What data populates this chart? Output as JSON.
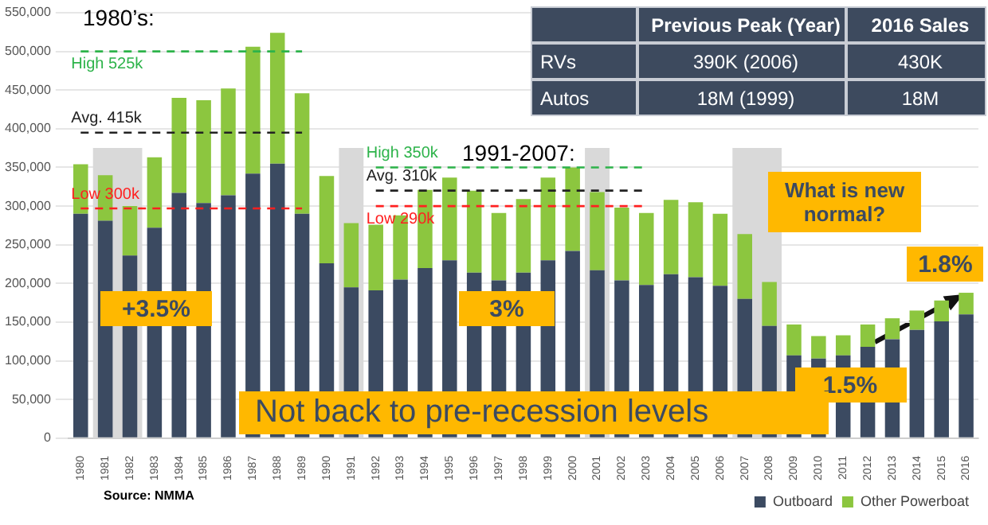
{
  "chart_data": {
    "type": "bar",
    "stacked": true,
    "grid": "y",
    "legend": "bottom",
    "categories": [
      "1980",
      "1981",
      "1982",
      "1983",
      "1984",
      "1985",
      "1986",
      "1987",
      "1988",
      "1989",
      "1990",
      "1991",
      "1992",
      "1993",
      "1994",
      "1995",
      "1996",
      "1997",
      "1998",
      "1999",
      "2000",
      "2001",
      "2002",
      "2003",
      "2004",
      "2005",
      "2006",
      "2007",
      "2008",
      "2009",
      "2010",
      "2011",
      "2012",
      "2013",
      "2014",
      "2015",
      "2016"
    ],
    "ylim": [
      0,
      550000
    ],
    "yticks": [
      {
        "value": 0,
        "label": "0"
      },
      {
        "value": 50000,
        "label": "50,000"
      },
      {
        "value": 100000,
        "label": "100,000"
      },
      {
        "value": 150000,
        "label": "150,000"
      },
      {
        "value": 200000,
        "label": "200,000"
      },
      {
        "value": 250000,
        "label": "250,000"
      },
      {
        "value": 300000,
        "label": "300,000"
      },
      {
        "value": 350000,
        "label": "350,000"
      },
      {
        "value": 400000,
        "label": "400,000"
      },
      {
        "value": 450000,
        "label": "450,000"
      },
      {
        "value": 500000,
        "label": "500,000"
      },
      {
        "value": 550000,
        "label": "550,000"
      }
    ],
    "series": [
      {
        "name": "Outboard",
        "color": "#3b4a61",
        "values": [
          290000,
          281000,
          236000,
          272000,
          317000,
          304000,
          314000,
          342000,
          355000,
          290000,
          226000,
          195000,
          191000,
          205000,
          220000,
          230000,
          214000,
          204000,
          214000,
          230000,
          242000,
          217000,
          204000,
          198000,
          212000,
          208000,
          197000,
          180000,
          145000,
          107000,
          103000,
          107000,
          118000,
          128000,
          140000,
          151000,
          160000
        ]
      },
      {
        "name": "Other Powerboat",
        "color": "#8cc63f",
        "values": [
          64000,
          59000,
          64000,
          91000,
          123000,
          133000,
          138000,
          164000,
          169000,
          156000,
          113000,
          83000,
          85000,
          83000,
          101000,
          107000,
          106000,
          87000,
          95000,
          107000,
          108000,
          101000,
          94000,
          93000,
          96000,
          97000,
          93000,
          84000,
          57000,
          40000,
          29000,
          26000,
          29000,
          27000,
          25000,
          27000,
          28000
        ]
      },
      {
        "name": "High 525k",
        "type": "line",
        "line_style": "dashed",
        "marker": "none",
        "color": "#2db34a",
        "values": [
          500000,
          500000,
          500000,
          500000,
          500000,
          500000,
          500000,
          500000,
          500000,
          500000,
          null,
          null,
          null,
          null,
          null,
          null,
          null,
          null,
          null,
          null,
          null,
          null,
          null,
          null,
          null,
          null,
          null,
          null,
          null,
          null,
          null,
          null,
          null,
          null,
          null,
          null,
          null
        ]
      },
      {
        "name": "Avg. 415k",
        "type": "line",
        "line_style": "dashed",
        "marker": "none",
        "color": "#222222",
        "values": [
          395000,
          395000,
          395000,
          395000,
          395000,
          395000,
          395000,
          395000,
          395000,
          395000,
          null,
          null,
          null,
          null,
          null,
          null,
          null,
          null,
          null,
          null,
          null,
          null,
          null,
          null,
          null,
          null,
          null,
          null,
          null,
          null,
          null,
          null,
          null,
          null,
          null,
          null,
          null
        ]
      },
      {
        "name": "Low 300k",
        "type": "line",
        "line_style": "dashed",
        "marker": "none",
        "color": "#ff2020",
        "values": [
          297000,
          297000,
          297000,
          297000,
          297000,
          297000,
          297000,
          297000,
          297000,
          297000,
          null,
          null,
          null,
          null,
          null,
          null,
          null,
          null,
          null,
          null,
          null,
          null,
          null,
          null,
          null,
          null,
          null,
          null,
          null,
          null,
          null,
          null,
          null,
          null,
          null,
          null,
          null
        ]
      },
      {
        "name": "High 350k",
        "type": "line",
        "line_style": "dashed",
        "marker": "none",
        "color": "#2db34a",
        "values": [
          null,
          null,
          null,
          null,
          null,
          null,
          null,
          null,
          null,
          null,
          null,
          null,
          350000,
          350000,
          350000,
          350000,
          350000,
          350000,
          350000,
          350000,
          350000,
          350000,
          350000,
          350000,
          null,
          null,
          null,
          null,
          null,
          null,
          null,
          null,
          null,
          null,
          null,
          null,
          null
        ]
      },
      {
        "name": "Avg. 310k",
        "type": "line",
        "line_style": "dashed",
        "marker": "none",
        "color": "#222222",
        "values": [
          null,
          null,
          null,
          null,
          null,
          null,
          null,
          null,
          null,
          null,
          null,
          null,
          320000,
          320000,
          320000,
          320000,
          320000,
          320000,
          320000,
          320000,
          320000,
          320000,
          320000,
          320000,
          null,
          null,
          null,
          null,
          null,
          null,
          null,
          null,
          null,
          null,
          null,
          null,
          null
        ]
      },
      {
        "name": "Low 290k",
        "type": "line",
        "line_style": "dashed",
        "marker": "none",
        "color": "#ff2020",
        "values": [
          null,
          null,
          null,
          null,
          null,
          null,
          null,
          null,
          null,
          null,
          null,
          null,
          300000,
          300000,
          300000,
          300000,
          300000,
          300000,
          300000,
          300000,
          300000,
          300000,
          300000,
          300000,
          null,
          null,
          null,
          null,
          null,
          null,
          null,
          null,
          null,
          null,
          null,
          null,
          null
        ]
      }
    ],
    "bands": [
      {
        "axis": "x",
        "from": "1981",
        "to": "1982",
        "color": "#d9d9d9"
      },
      {
        "axis": "x",
        "from": "1991",
        "to": "1991",
        "color": "#d9d9d9"
      },
      {
        "axis": "x",
        "from": "2001",
        "to": "2001",
        "color": "#d9d9d9"
      },
      {
        "axis": "x",
        "from": "2007",
        "to": "2008",
        "color": "#d9d9d9"
      }
    ],
    "annotations": [
      "1980’s:",
      "1991-2007:",
      "+3.5%",
      "3%",
      "What is new normal?",
      {
        "text": "1.5%",
        "x": "2012",
        "y": 120000
      },
      {
        "text": "1.8%",
        "x": "2016",
        "y": 190000
      },
      "Not back to pre-recession levels",
      "Source: NMMA",
      "Previous Peak (Year)",
      "2016 Sales",
      "RVs",
      "390K (2006)",
      "430K",
      "Autos",
      "18M (1999)",
      "18M"
    ]
  }
}
